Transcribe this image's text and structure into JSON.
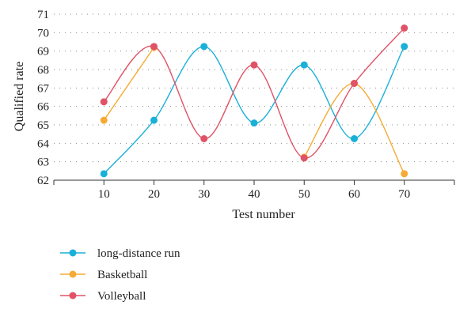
{
  "chart_data": {
    "type": "line",
    "title": "",
    "xlabel": "Test number",
    "ylabel": "Qualified rate",
    "x": [
      10,
      20,
      30,
      40,
      50,
      60,
      70
    ],
    "xlim": [
      0,
      80
    ],
    "ylim": [
      62,
      71
    ],
    "yticks": [
      62,
      63,
      64,
      65,
      66,
      67,
      68,
      69,
      70,
      71
    ],
    "grid": true,
    "legend_position": "bottom",
    "smooth": true,
    "series": [
      {
        "name": "long-distance run",
        "color": "#1ab0d8",
        "values": [
          62.35,
          65.25,
          69.25,
          65.1,
          68.25,
          64.25,
          69.25
        ]
      },
      {
        "name": "Basketball",
        "color": "#f5ab35",
        "values": [
          65.25,
          69.2,
          null,
          null,
          63.25,
          67.25,
          62.35
        ]
      },
      {
        "name": "Volleyball",
        "color": "#e05266",
        "values": [
          66.25,
          69.25,
          64.25,
          68.25,
          63.2,
          67.25,
          70.25
        ]
      }
    ]
  }
}
